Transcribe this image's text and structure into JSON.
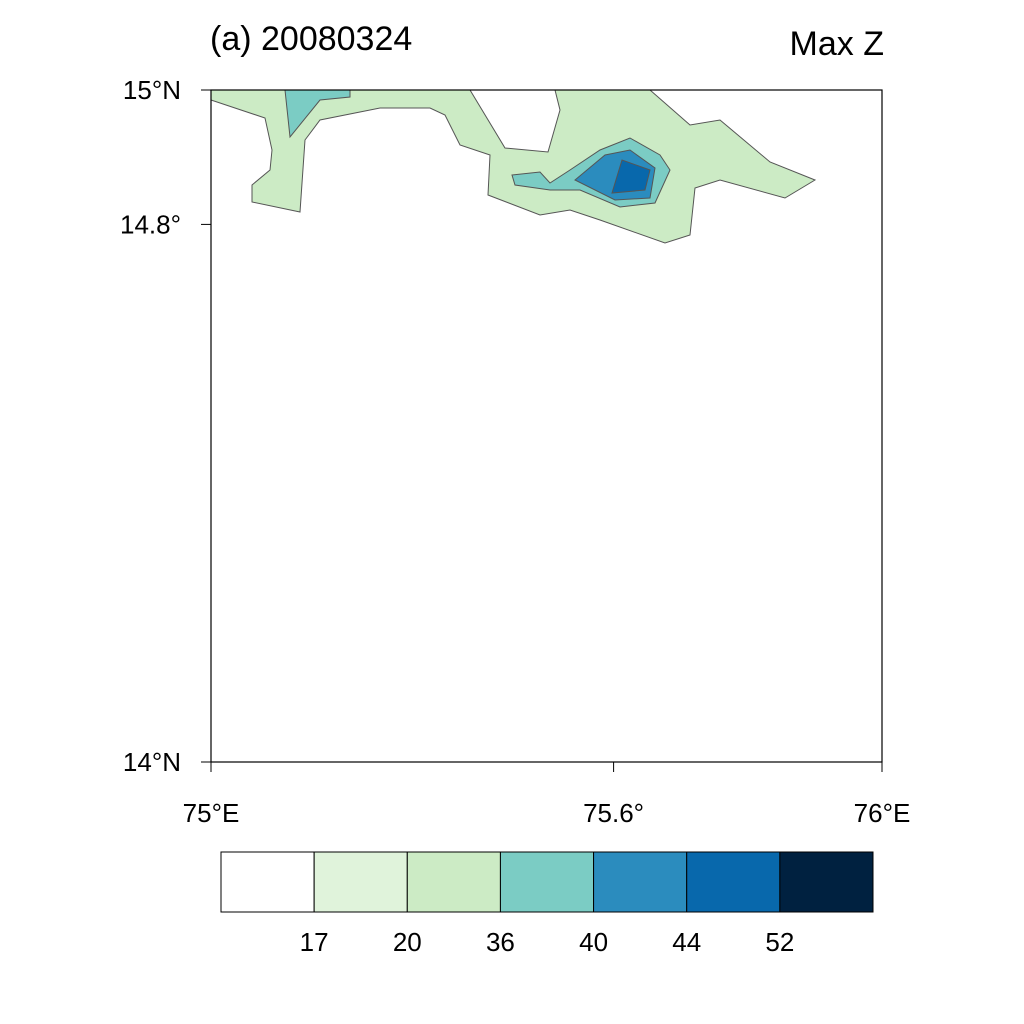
{
  "chart_data": {
    "type": "contour",
    "title": "(a)  20080324",
    "subtitle": "Max Z",
    "xlim": [
      75,
      76
    ],
    "ylim": [
      14,
      15
    ],
    "xticks": [
      {
        "value": 75,
        "label": "75°E"
      },
      {
        "value": 75.6,
        "label": "75.6°"
      },
      {
        "value": 76,
        "label": "76°E"
      }
    ],
    "yticks": [
      {
        "value": 15,
        "label": "15°N"
      },
      {
        "value": 14.8,
        "label": "14.8°"
      },
      {
        "value": 14,
        "label": "14°N"
      }
    ],
    "levels": [
      17,
      20,
      36,
      40,
      44,
      52
    ],
    "colors": [
      "#ffffff",
      "#e0f3db",
      "#ccebc5",
      "#7bccc4",
      "#2b8cbe",
      "#0868ac",
      "#002140"
    ]
  }
}
